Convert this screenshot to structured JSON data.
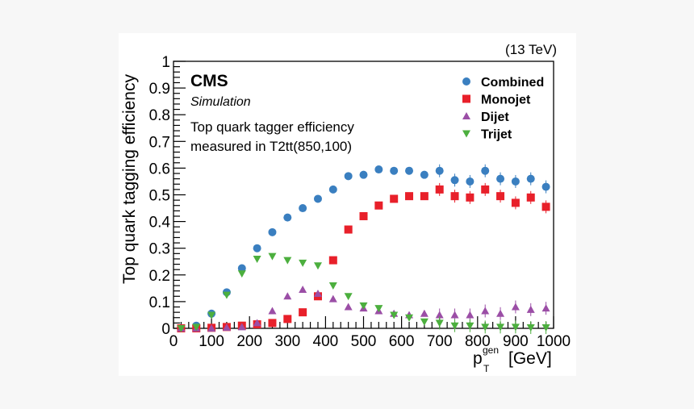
{
  "chart_data": {
    "type": "scatter",
    "energy_label": "(13 TeV)",
    "experiment": "CMS",
    "sublabel": "Simulation",
    "annotation_lines": [
      "Top quark tagger efficiency",
      "measured in T2tt(850,100)"
    ],
    "xlabel": {
      "base": "p",
      "sub": "T",
      "sup": "gen",
      "unit": "[GeV]"
    },
    "ylabel": "Top quark tagging efficiency",
    "xlim": [
      0,
      1000
    ],
    "ylim": [
      0,
      1
    ],
    "xticks": [
      "0",
      "100",
      "200",
      "300",
      "400",
      "500",
      "600",
      "700",
      "800",
      "900",
      "1000"
    ],
    "yticks": [
      "0",
      "0.1",
      "0.2",
      "0.3",
      "0.4",
      "0.5",
      "0.6",
      "0.7",
      "0.8",
      "0.9",
      "1"
    ],
    "grid": false,
    "legend_position": "top-right",
    "x": [
      20,
      60,
      100,
      140,
      180,
      220,
      260,
      300,
      340,
      380,
      420,
      460,
      500,
      540,
      580,
      620,
      660,
      700,
      740,
      780,
      820,
      860,
      900,
      940,
      980
    ],
    "series": [
      {
        "name": "Combined",
        "color": "#3a7fc0",
        "marker": "circle",
        "values": [
          0.0,
          0.01,
          0.055,
          0.135,
          0.225,
          0.3,
          0.36,
          0.415,
          0.45,
          0.485,
          0.52,
          0.57,
          0.575,
          0.595,
          0.59,
          0.59,
          0.575,
          0.59,
          0.555,
          0.55,
          0.59,
          0.56,
          0.55,
          0.56,
          0.53
        ]
      },
      {
        "name": "Monojet",
        "color": "#e8202a",
        "marker": "square",
        "values": [
          0.0,
          0.0,
          0.002,
          0.005,
          0.01,
          0.015,
          0.02,
          0.035,
          0.06,
          0.12,
          0.255,
          0.37,
          0.42,
          0.46,
          0.485,
          0.495,
          0.495,
          0.52,
          0.495,
          0.49,
          0.52,
          0.495,
          0.47,
          0.49,
          0.455
        ]
      },
      {
        "name": "Dijet",
        "color": "#9b4ea6",
        "marker": "triangle-up",
        "values": [
          0.0,
          0.0,
          0.0,
          0.003,
          0.005,
          0.02,
          0.065,
          0.12,
          0.145,
          0.13,
          0.11,
          0.08,
          0.075,
          0.065,
          0.055,
          0.05,
          0.055,
          0.05,
          0.05,
          0.05,
          0.065,
          0.055,
          0.08,
          0.07,
          0.075
        ]
      },
      {
        "name": "Trijet",
        "color": "#4caf3e",
        "marker": "triangle-down",
        "values": [
          0.0,
          0.005,
          0.05,
          0.125,
          0.205,
          0.26,
          0.27,
          0.255,
          0.245,
          0.235,
          0.16,
          0.12,
          0.085,
          0.075,
          0.05,
          0.04,
          0.025,
          0.02,
          0.01,
          0.01,
          0.005,
          0.005,
          0.005,
          0.003,
          0.003
        ]
      }
    ]
  }
}
